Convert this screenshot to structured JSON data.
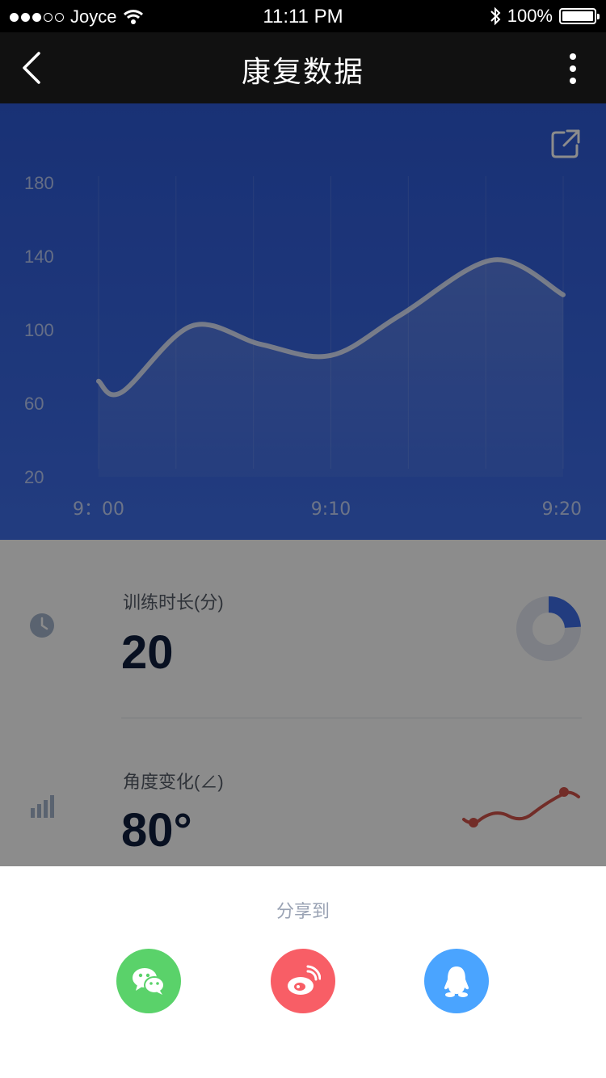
{
  "status_bar": {
    "carrier": "Joyce",
    "time": "11:11 PM",
    "battery": "100%"
  },
  "nav": {
    "title": "康复数据"
  },
  "chart_data": {
    "type": "line",
    "x": [
      "9:00",
      "9:10",
      "9:20"
    ],
    "x_tick_labels": [
      "9：00",
      "9:10",
      "9:20"
    ],
    "y_ticks": [
      20,
      60,
      100,
      140,
      180
    ],
    "ylim": [
      20,
      180
    ],
    "grid": "vertical",
    "points": [
      {
        "x": "9:00",
        "y": 72
      },
      {
        "x": "9:01",
        "y": 66
      },
      {
        "x": "9:04",
        "y": 102
      },
      {
        "x": "9:07",
        "y": 92
      },
      {
        "x": "9:10",
        "y": 86
      },
      {
        "x": "9:13",
        "y": 108
      },
      {
        "x": "9:17",
        "y": 138
      },
      {
        "x": "9:20",
        "y": 119
      }
    ]
  },
  "stats": [
    {
      "label": "训练时长(分)",
      "value": "20",
      "icon": "clock-icon",
      "progress": 0.24
    },
    {
      "label": "角度变化(∠)",
      "value": "80°",
      "icon": "bar-chart-icon"
    }
  ],
  "share": {
    "title": "分享到",
    "options": [
      {
        "icon": "wechat-icon",
        "color": "#5ad26a"
      },
      {
        "icon": "weibo-icon",
        "color": "#f85e66"
      },
      {
        "icon": "qq-icon",
        "color": "#4aa4ff"
      }
    ]
  },
  "colors": {
    "chart_background": "#2e5ad6",
    "donut_fill": "#3f6ee8",
    "sparkline": "#d0524a"
  }
}
